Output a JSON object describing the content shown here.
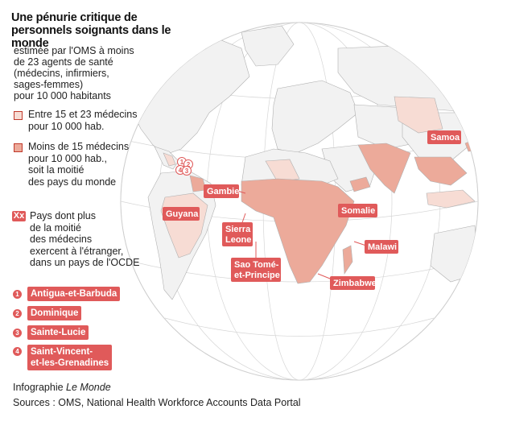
{
  "title": "Une pénurie critique de personnels soignants dans le monde",
  "subtitle": [
    "estimée par l'OMS à moins",
    "de 23 agents de santé",
    "(médecins, infirmiers,",
    "sages-femmes)",
    "pour 10 000 habitants"
  ],
  "legend": {
    "light": [
      "Entre 15 et 23 médecins",
      "pour 10 000 hab."
    ],
    "mid": [
      "Moins de 15 médecins",
      "pour 10 000 hab.,",
      "soit la moitié",
      "des pays du monde"
    ],
    "xx_marker": "Xx",
    "emigration": [
      "Pays dont plus",
      "de la moitié",
      "des médecins",
      "exercent à l'étranger,",
      "dans un pays de l'OCDE"
    ]
  },
  "numbered": [
    {
      "num": "1",
      "name": "Antigua-et-Barbuda"
    },
    {
      "num": "2",
      "name": "Dominique"
    },
    {
      "num": "3",
      "name": "Sainte-Lucie"
    },
    {
      "num": "4",
      "name": [
        "Saint-Vincent-",
        "et-les-Grenadines"
      ]
    }
  ],
  "map_labels": {
    "samoa": "Samoa",
    "gambie": "Gambie",
    "guyana": "Guyana",
    "somalie": "Somalie",
    "sierra": [
      "Sierra",
      "Leone"
    ],
    "malawi": "Malawi",
    "saotome": [
      "Sao Tomé-",
      "et-Principe"
    ],
    "zimbabwe": "Zimbabwe"
  },
  "credit_prefix": "Infographie",
  "credit_source": "Le Monde",
  "sources": "Sources : OMS, National Health Workforce Accounts Data Portal",
  "colors": {
    "light": "#f7dcd4",
    "mid": "#ecaa9a",
    "accent": "#e05a5a",
    "land": "#f2f2f2",
    "ocean": "#ffffff",
    "border": "#b0b0b0"
  }
}
